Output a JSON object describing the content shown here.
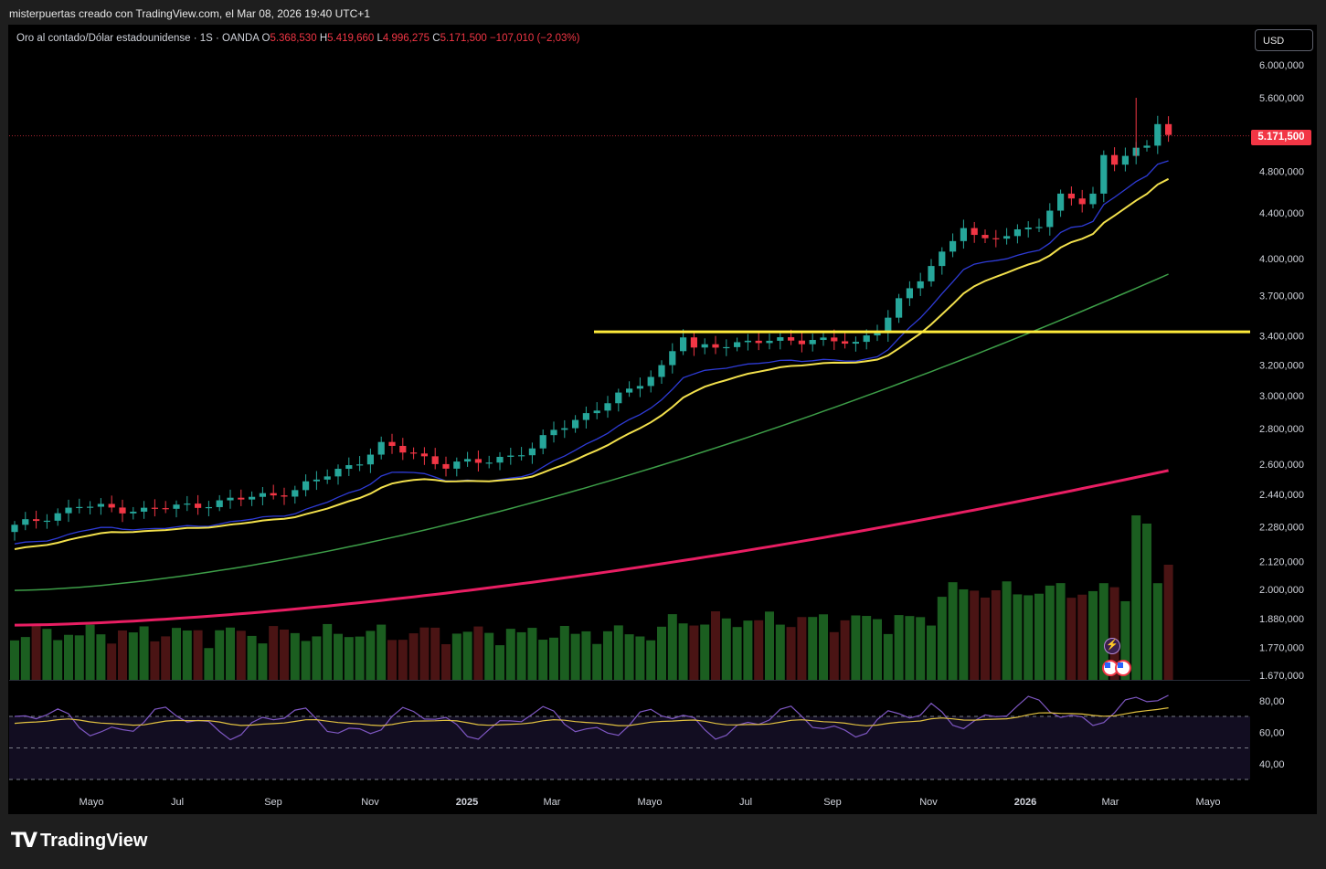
{
  "header": {
    "caption": "misterpuertas creado con TradingView.com, el Mar 08, 2026 19:40 UTC+1"
  },
  "symbol": {
    "name": "Oro al contado/Dólar estadounidense · 1S · OANDA",
    "open_label": "O",
    "open": "5.368,530",
    "high_label": "H",
    "high": "5.419,660",
    "low_label": "L",
    "low": "4.996,275",
    "close_label": "C",
    "close": "5.171,500",
    "change": "−107,010 (−2,03%)"
  },
  "currency": "USD",
  "last_price_badge": "5.171,500",
  "brand": {
    "name": "TradingView",
    "logo_mark": "TV"
  },
  "colors": {
    "up": "#26a69a",
    "down": "#f23645",
    "ema_blue": "#2e3bd6",
    "ema_yellow": "#f2e04c",
    "ema_green": "#3d9e48",
    "ema_red": "#e91e63",
    "resistance": "#ffeb3b",
    "volume_up": "#1b5e20",
    "volume_down": "#4a1414",
    "rsi": "#7e57c2",
    "rsi_ma": "#e0c040"
  },
  "chart_data": {
    "type": "candlestick",
    "symbol": "XAUUSD",
    "timeframe": "1S",
    "y_scale": "log",
    "ylim": [
      1670,
      6000
    ],
    "x_tick_labels": [
      "Mayo",
      "Jul",
      "Sep",
      "Nov",
      "2025",
      "Mar",
      "Mayo",
      "Jul",
      "Sep",
      "Nov",
      "2026",
      "Mar",
      "Mayo"
    ],
    "y_tick_labels": [
      "6.000,000",
      "5.600,000",
      "4.800,000",
      "4.400,000",
      "4.000,000",
      "3.700,000",
      "3.400,000",
      "3.200,000",
      "3.000,000",
      "2.800,000",
      "2.600,000",
      "2.440,000",
      "2.280,000",
      "2.120,000",
      "2.000,000",
      "1.880,000",
      "1.770,000",
      "1.670,000"
    ],
    "resistance_level": 3430,
    "series": [
      {
        "id": "ema_blue",
        "from": 2200,
        "to": 4920
      },
      {
        "id": "ema_yellow",
        "from": 2170,
        "to": 4630
      },
      {
        "id": "ema_green",
        "from": 1995,
        "to": 3870
      },
      {
        "id": "ema_red",
        "from": 1855,
        "to": 2565
      }
    ],
    "anchors": [
      [
        0,
        2280
      ],
      [
        6,
        2380
      ],
      [
        12,
        2360
      ],
      [
        19,
        2400
      ],
      [
        26,
        2460
      ],
      [
        32,
        2620
      ],
      [
        34,
        2700
      ],
      [
        37,
        2660
      ],
      [
        40,
        2590
      ],
      [
        44,
        2620
      ],
      [
        48,
        2680
      ],
      [
        50,
        2790
      ],
      [
        54,
        2920
      ],
      [
        57,
        3030
      ],
      [
        60,
        3190
      ],
      [
        62,
        3400
      ],
      [
        63,
        3300
      ],
      [
        66,
        3350
      ],
      [
        70,
        3360
      ],
      [
        74,
        3380
      ],
      [
        78,
        3340
      ],
      [
        80,
        3450
      ],
      [
        82,
        3660
      ],
      [
        84,
        3820
      ],
      [
        86,
        4040
      ],
      [
        88,
        4300
      ],
      [
        89,
        4190
      ],
      [
        90,
        4140
      ],
      [
        92,
        4200
      ],
      [
        95,
        4310
      ],
      [
        97,
        4540
      ],
      [
        99,
        4500
      ],
      [
        100,
        4580
      ],
      [
        101,
        4960
      ],
      [
        102,
        4900
      ],
      [
        103,
        4980
      ],
      [
        105,
        5030
      ],
      [
        106,
        5320
      ],
      [
        107,
        5200
      ]
    ],
    "volume": {
      "min": 1,
      "max": 100
    },
    "rsi": {
      "yticks": [
        "80,00",
        "60,00",
        "40,00"
      ],
      "levels": [
        70,
        50,
        30
      ]
    }
  }
}
